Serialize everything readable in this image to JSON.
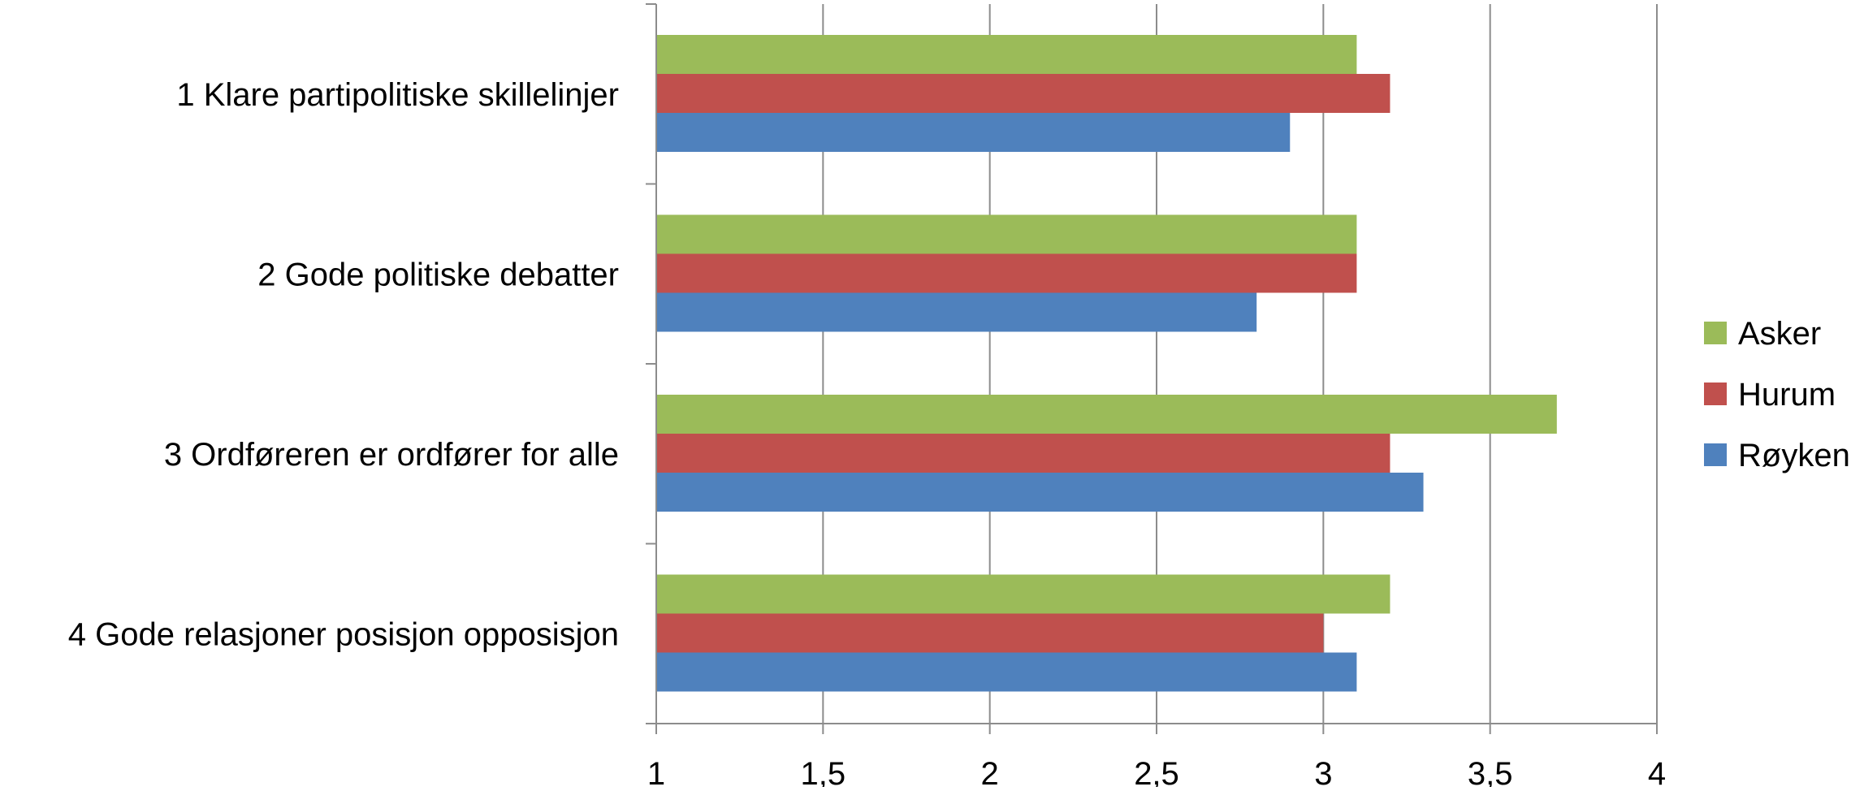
{
  "chart_data": {
    "type": "bar",
    "orientation": "horizontal",
    "title": "",
    "xlabel": "",
    "ylabel": "",
    "categories": [
      "1 Klare partipolitiske skillelinjer",
      "2 Gode politiske debatter",
      "3 Ordføreren er ordfører for alle",
      "4 Gode relasjoner posisjon opposisjon"
    ],
    "series": [
      {
        "name": "Asker",
        "color": "#9BBB59",
        "values": [
          3.1,
          3.1,
          3.7,
          3.2
        ]
      },
      {
        "name": "Hurum",
        "color": "#C0504D",
        "values": [
          3.2,
          3.1,
          3.2,
          3.0
        ]
      },
      {
        "name": "Røyken",
        "color": "#4F81BD",
        "values": [
          2.9,
          2.8,
          3.3,
          3.1
        ]
      }
    ],
    "xlim": [
      1,
      4
    ],
    "xticks": [
      1,
      1.5,
      2,
      2.5,
      3,
      3.5,
      4
    ],
    "xtick_labels": [
      "1",
      "1,5",
      "2",
      "2,5",
      "3",
      "3,5",
      "4"
    ],
    "grid": true,
    "legend_position": "right"
  }
}
